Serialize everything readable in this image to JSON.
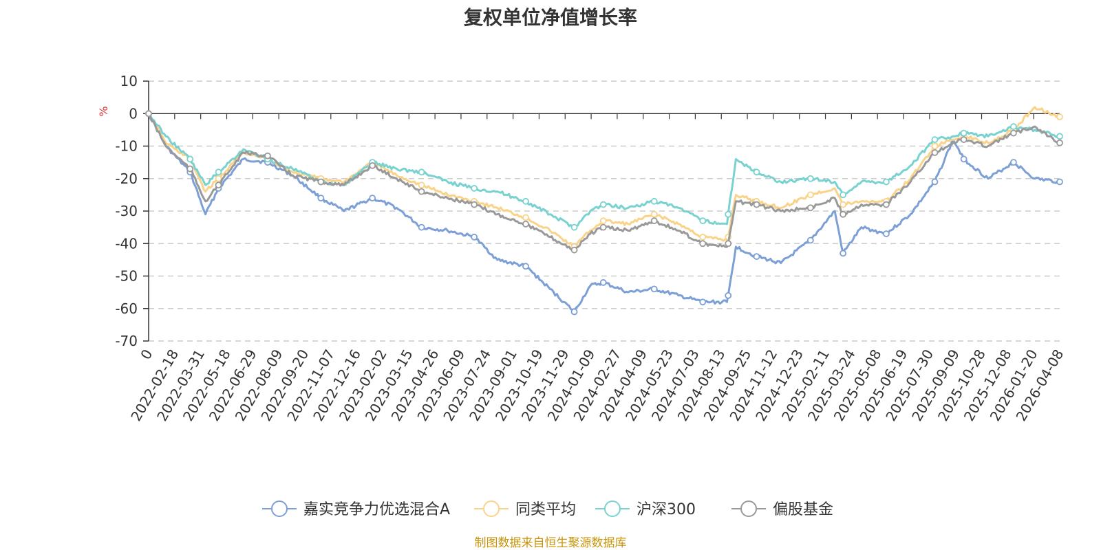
{
  "chart_data": {
    "type": "line",
    "title": "复权单位净值增长率",
    "ylabel": "%",
    "ylim": [
      -70,
      10
    ],
    "yticks": [
      10,
      0,
      -10,
      -20,
      -30,
      -40,
      -50,
      -60,
      -70
    ],
    "grid": true,
    "legend": "bottom",
    "source": "制图数据来自恒生聚源数据库",
    "x_tick_labels": [
      "0",
      "2022-02-18",
      "2022-03-31",
      "2022-05-18",
      "2022-06-29",
      "2022-08-09",
      "2022-09-20",
      "2022-11-07",
      "2022-12-16",
      "2023-02-02",
      "2023-03-15",
      "2023-04-26",
      "2023-06-09",
      "2023-07-24",
      "2023-09-01",
      "2023-10-19",
      "2023-11-29",
      "2024-01-09",
      "2024-02-27",
      "2024-04-09",
      "2024-05-23",
      "2024-07-03",
      "2024-08-13",
      "2024-09-25",
      "2024-11-12",
      "2024-12-23",
      "2025-02-11",
      "2025-03-24",
      "2025-05-08",
      "2025-06-19",
      "2025-07-30",
      "2025-09-09",
      "2025-10-28",
      "2025-12-08",
      "2026-01-20",
      "2026-04-08"
    ],
    "x": [
      "0",
      "2022-02-18",
      "2022-03-31",
      "2022-04-26",
      "2022-05-18",
      "2022-06-29",
      "2022-08-09",
      "2022-09-20",
      "2022-11-07",
      "2022-12-16",
      "2023-02-02",
      "2023-03-15",
      "2023-04-26",
      "2023-06-09",
      "2023-07-24",
      "2023-09-01",
      "2023-10-19",
      "2023-11-29",
      "2024-01-09",
      "2024-02-05",
      "2024-02-27",
      "2024-04-09",
      "2024-05-23",
      "2024-07-03",
      "2024-08-13",
      "2024-09-23",
      "2024-09-25",
      "2024-10-08",
      "2024-11-12",
      "2024-12-23",
      "2025-02-11",
      "2025-03-24",
      "2025-04-07",
      "2025-05-08",
      "2025-06-19",
      "2025-07-30",
      "2025-09-09",
      "2025-10-10",
      "2025-10-28",
      "2025-12-08",
      "2026-01-20",
      "2026-02-25",
      "2026-04-08"
    ],
    "series": [
      {
        "name": "嘉实竞争力优选混合A",
        "color": "#7c9fd6",
        "values": [
          0,
          -10,
          -18,
          -31,
          -23,
          -14,
          -15,
          -19,
          -26,
          -30,
          -26,
          -29,
          -35,
          -36,
          -38,
          -45,
          -47,
          -54,
          -61,
          -53,
          -52,
          -55,
          -54,
          -56,
          -58,
          -58,
          -56,
          -41,
          -44,
          -46,
          -39,
          -30,
          -43,
          -35,
          -37,
          -31,
          -21,
          -8,
          -14,
          -20,
          -15,
          -20,
          -21
        ]
      },
      {
        "name": "同类平均",
        "color": "#fad38b",
        "values": [
          0,
          -9,
          -14,
          -24,
          -20,
          -12,
          -14,
          -18,
          -20,
          -21,
          -15,
          -19,
          -22,
          -25,
          -27,
          -29,
          -32,
          -36,
          -41,
          -36,
          -33,
          -34,
          -31,
          -34,
          -38,
          -39,
          -38,
          -25,
          -27,
          -29,
          -25,
          -23,
          -28,
          -27,
          -27,
          -20,
          -10,
          -8,
          -7,
          -9,
          -5,
          2,
          -1
        ]
      },
      {
        "name": "沪深300",
        "color": "#79d2cf",
        "values": [
          0,
          -7,
          -14,
          -22,
          -18,
          -11,
          -14,
          -17,
          -21,
          -22,
          -15,
          -17,
          -18,
          -21,
          -23,
          -24,
          -27,
          -31,
          -35,
          -30,
          -28,
          -29,
          -27,
          -29,
          -33,
          -34,
          -31,
          -14,
          -18,
          -21,
          -20,
          -21,
          -25,
          -21,
          -21,
          -16,
          -8,
          -7,
          -6,
          -7,
          -4,
          -5,
          -7
        ]
      },
      {
        "name": "偏股基金",
        "color": "#999999",
        "values": [
          0,
          -10,
          -17,
          -27,
          -22,
          -12,
          -13,
          -19,
          -21,
          -22,
          -16,
          -20,
          -24,
          -26,
          -28,
          -31,
          -34,
          -38,
          -42,
          -37,
          -35,
          -36,
          -33,
          -36,
          -40,
          -41,
          -40,
          -27,
          -28,
          -30,
          -29,
          -26,
          -31,
          -28,
          -28,
          -21,
          -12,
          -9,
          -8,
          -10,
          -6,
          -4,
          -9
        ]
      }
    ]
  }
}
